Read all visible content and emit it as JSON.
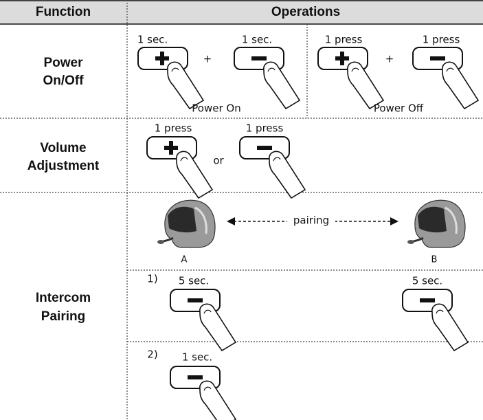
{
  "header": {
    "function": "Function",
    "operations": "Operations"
  },
  "rows": [
    {
      "function": [
        "Power",
        "On/Off"
      ],
      "power_on": {
        "plus_label": "1 sec.",
        "joiner": "+",
        "minus_label": "1 sec.",
        "caption": "Power On"
      },
      "power_off": {
        "plus_label": "1 press",
        "joiner": "+",
        "minus_label": "1 press",
        "caption": "Power Off"
      }
    },
    {
      "function": [
        "Volume",
        "Adjustment"
      ],
      "plus_label": "1 press",
      "joiner": "or",
      "minus_label": "1 press"
    },
    {
      "function": [
        "Intercom",
        "Pairing"
      ],
      "pairing": {
        "arrow_label": "pairing",
        "left": "A",
        "right": "B"
      },
      "step1": {
        "number": "1)",
        "left_label": "5 sec.",
        "right_label": "5 sec."
      },
      "step2": {
        "number": "2)",
        "label": "1 sec."
      }
    }
  ]
}
